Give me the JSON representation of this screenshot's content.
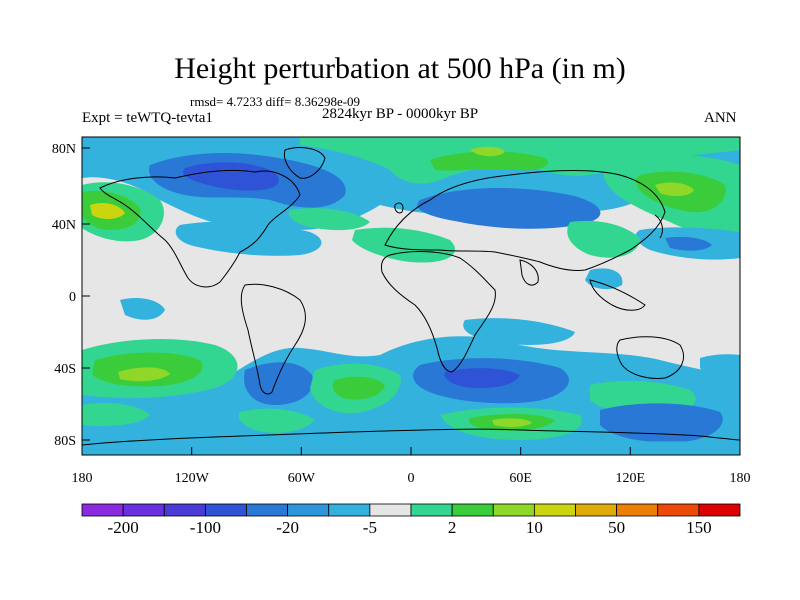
{
  "title": "Height perturbation at 500 hPa (in m)",
  "stats": "rmsd= 4.7233 diff= 8.36298e-09",
  "experiment": "Expt = teWTQ-tevta1",
  "period": "2824kyr BP - 0000kyr BP",
  "season": "ANN",
  "lat_ticks": [
    "80N",
    "40N",
    "0",
    "40S",
    "80S"
  ],
  "lon_ticks": [
    "180",
    "120W",
    "60W",
    "0",
    "60E",
    "120E",
    "180"
  ],
  "colorbar": {
    "colors": [
      "#8a2be2",
      "#6a2fe0",
      "#4a3ad8",
      "#2e53d6",
      "#2a78d6",
      "#2d96da",
      "#33b2de",
      "#e6e6e6",
      "#33d690",
      "#3acc3a",
      "#8fd82a",
      "#cad40f",
      "#e0aa08",
      "#ec7f05",
      "#ed4a08",
      "#dd0000"
    ],
    "labels": [
      "-200",
      "-100",
      "-20",
      "-5",
      "2",
      "10",
      "50",
      "150"
    ]
  },
  "field_colors": {
    "background": "#e6e6e6",
    "pale_blue": "#33b2de",
    "blue": "#2a78d6",
    "dark_blue": "#2e53d6",
    "green": "#33d690",
    "lime": "#3acc3a",
    "yellow_green": "#8fd82a",
    "yellow": "#cad40f",
    "orange": "#e0aa08"
  }
}
